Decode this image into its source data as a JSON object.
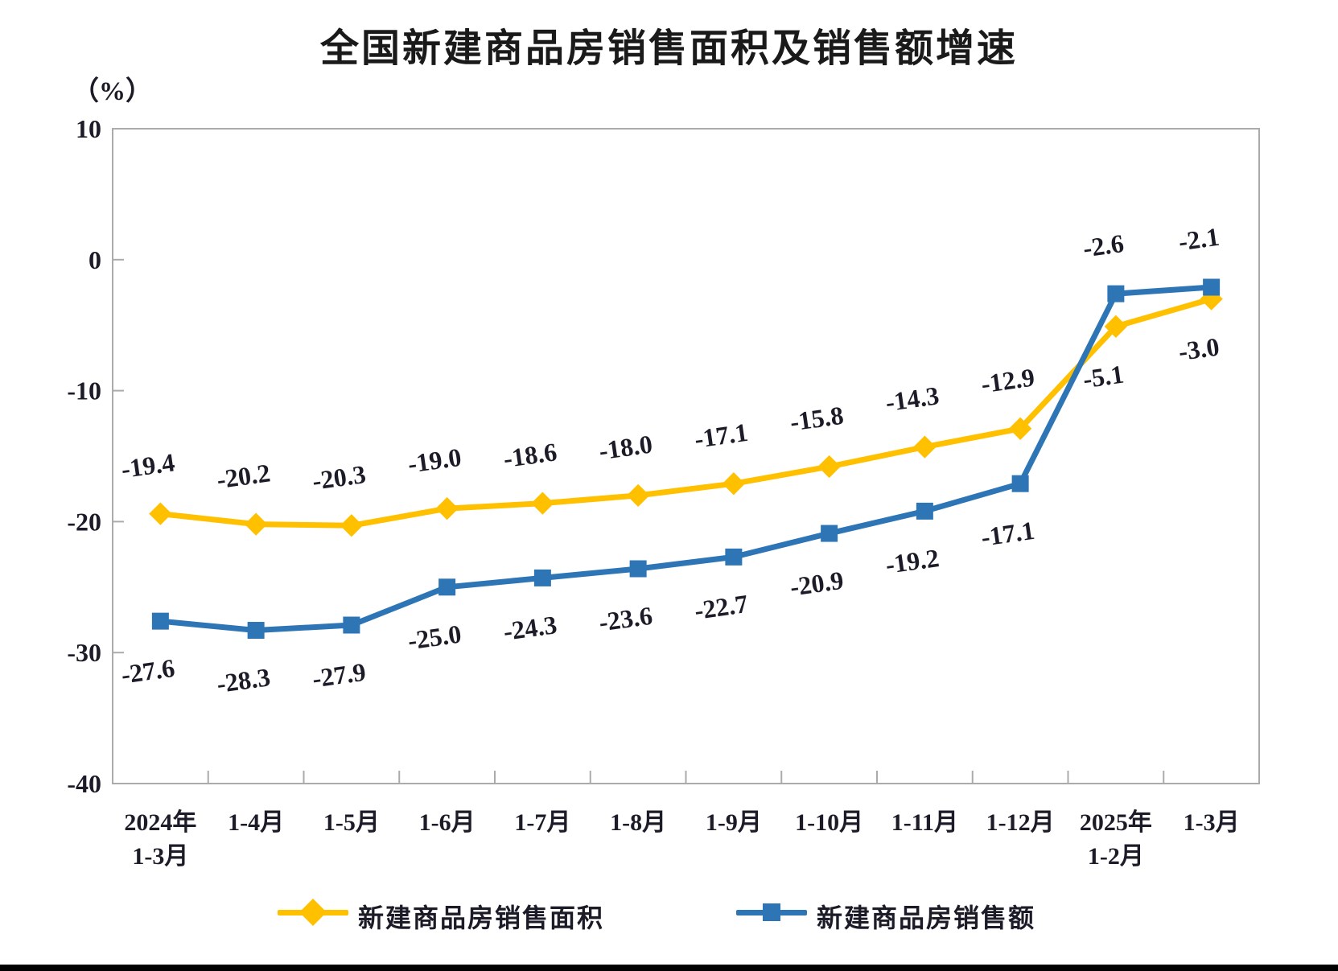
{
  "page": {
    "unit_label": "（%）"
  },
  "chart_data": {
    "type": "line",
    "title": "全国新建商品房销售面积及销售额增速",
    "ylabel": "（%）",
    "ylim": [
      -40,
      10
    ],
    "y_ticks": [
      10,
      0,
      -10,
      -20,
      -30,
      -40
    ],
    "grid": false,
    "legend_position": "bottom",
    "categories": [
      [
        "2024年",
        "1-3月"
      ],
      [
        "1-4月"
      ],
      [
        "1-5月"
      ],
      [
        "1-6月"
      ],
      [
        "1-7月"
      ],
      [
        "1-8月"
      ],
      [
        "1-9月"
      ],
      [
        "1-10月"
      ],
      [
        "1-11月"
      ],
      [
        "1-12月"
      ],
      [
        "2025年",
        "1-2月"
      ],
      [
        "1-3月"
      ]
    ],
    "series": [
      {
        "name": "新建商品房销售面积",
        "color": "#FFC000",
        "marker": "diamond",
        "values": [
          -19.4,
          -20.2,
          -20.3,
          -19.0,
          -18.6,
          -18.0,
          -17.1,
          -15.8,
          -14.3,
          -12.9,
          -5.1,
          -3.0
        ],
        "labels": [
          "-19.4",
          "-20.2",
          "-20.3",
          "-19.0",
          "-18.6",
          "-18.0",
          "-17.1",
          "-15.8",
          "-14.3",
          "-12.9",
          "-5.1",
          "-3.0"
        ],
        "label_sides": [
          "above",
          "above",
          "above",
          "above",
          "above",
          "above",
          "above",
          "above",
          "above",
          "above",
          "below",
          "below"
        ]
      },
      {
        "name": "新建商品房销售额",
        "color": "#2E75B6",
        "marker": "square",
        "values": [
          -27.6,
          -28.3,
          -27.9,
          -25.0,
          -24.3,
          -23.6,
          -22.7,
          -20.9,
          -19.2,
          -17.1,
          -2.6,
          -2.1
        ],
        "labels": [
          "-27.6",
          "-28.3",
          "-27.9",
          "-25.0",
          "-24.3",
          "-23.6",
          "-22.7",
          "-20.9",
          "-19.2",
          "-17.1",
          "-2.6",
          "-2.1"
        ],
        "label_sides": [
          "below",
          "below",
          "below",
          "below",
          "below",
          "below",
          "below",
          "below",
          "below",
          "below",
          "above",
          "above"
        ]
      }
    ]
  }
}
